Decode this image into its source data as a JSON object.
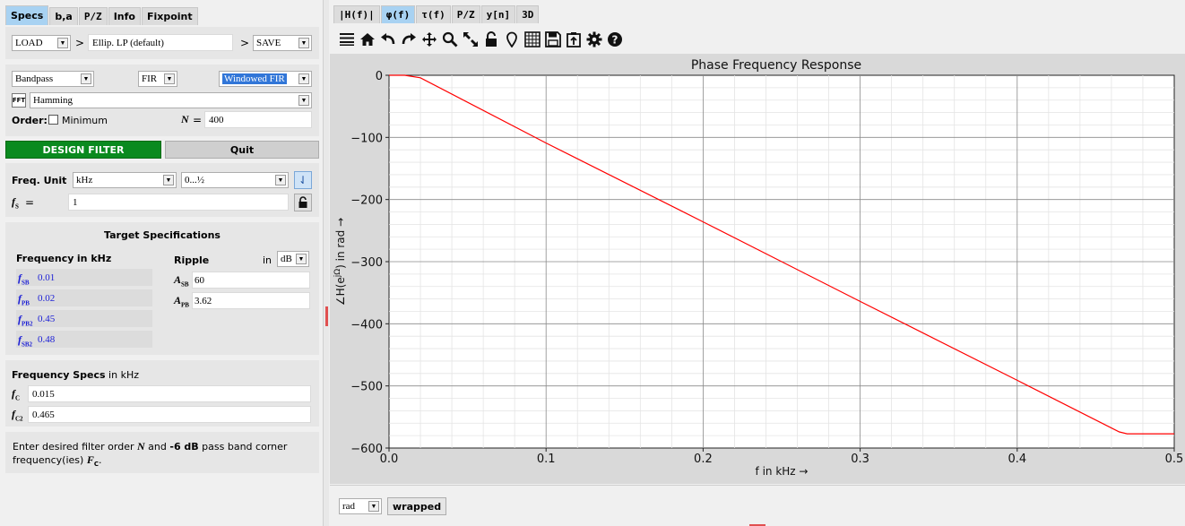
{
  "left_tabs": [
    "Specs",
    "b,a",
    "P/Z",
    "Info",
    "Fixpoint"
  ],
  "load_save": {
    "load": "LOAD",
    "arrow1": ">",
    "preset": "Ellip. LP (default)",
    "arrow2": ">",
    "save": "SAVE"
  },
  "filter": {
    "response_type": "Bandpass",
    "filter_class": "FIR",
    "design_method": "Windowed FIR",
    "fft_label": "FFT",
    "window": "Hamming",
    "order_label": "Order:",
    "minimum_label": "Minimum",
    "n_label": "N",
    "n_eq": "=",
    "n_value": "400"
  },
  "buttons": {
    "design": "DESIGN FILTER",
    "quit": "Quit"
  },
  "freq": {
    "unit_label": "Freq. Unit",
    "unit": "kHz",
    "range": "0...½",
    "fs_label": "f",
    "fs_sub": "S",
    "fs_eq": "=",
    "fs_value": "1"
  },
  "target": {
    "title": "Target Specifications",
    "freq_header": "Frequency",
    "freq_unit_in": "in kHz",
    "ripple_header": "Ripple",
    "ripple_in": "in",
    "ripple_unit": "dB",
    "freq_rows": [
      {
        "sym": "f",
        "sub": "SB",
        "value": "0.01"
      },
      {
        "sym": "f",
        "sub": "PB",
        "value": "0.02"
      },
      {
        "sym": "f",
        "sub": "PB2",
        "value": "0.45"
      },
      {
        "sym": "f",
        "sub": "SB2",
        "value": "0.48"
      }
    ],
    "ripple_rows": [
      {
        "sym": "A",
        "sub": "SB",
        "value": "60"
      },
      {
        "sym": "A",
        "sub": "PB",
        "value": "3.62"
      }
    ]
  },
  "fspecs": {
    "title": "Frequency Specs",
    "unit_in": "in kHz",
    "rows": [
      {
        "sym": "f",
        "sub": "C",
        "value": "0.015"
      },
      {
        "sym": "f",
        "sub": "C2",
        "value": "0.465"
      }
    ]
  },
  "info": {
    "part1": "Enter desired filter order ",
    "n": "N",
    "part2": " and ",
    "db": "-6 dB",
    "part3": " pass band corner frequency(ies) ",
    "fc": "F",
    "fc_sub": "C",
    "part4": "."
  },
  "right_tabs": [
    "|H(f)|",
    "φ(f)",
    "τ(f)",
    "P/Z",
    "y[n]",
    "3D"
  ],
  "toolbar_icons": [
    "menu-lines-icon",
    "home-icon",
    "undo-icon",
    "redo-icon",
    "pan-icon",
    "zoom-icon",
    "full-view-icon",
    "lock-icon",
    "marker-icon",
    "grid-icon",
    "save-icon",
    "clipboard-icon",
    "settings-gear-icon",
    "help-icon"
  ],
  "bottom": {
    "unit": "rad",
    "wrapped": "wrapped"
  },
  "colors": {
    "line": "#ff0000",
    "design_button": "#0a8a1f",
    "active_tab": "#a8d2f2",
    "selected_combo": "#3176d8"
  },
  "chart_data": {
    "type": "line",
    "title": "Phase Frequency Response",
    "xlabel": "f in kHz →",
    "ylabel": "∠H(e^jΩ) in rad →",
    "xlim": [
      0.0,
      0.5
    ],
    "ylim": [
      -600,
      0
    ],
    "xticks": [
      "0.0",
      "0.1",
      "0.2",
      "0.3",
      "0.4",
      "0.5"
    ],
    "yticks": [
      "0",
      "−100",
      "−200",
      "−300",
      "−400",
      "−500",
      "−600"
    ],
    "grid": true,
    "series": [
      {
        "x": [
          0.0,
          0.01,
          0.02,
          0.1,
          0.2,
          0.3,
          0.4,
          0.465,
          0.47,
          0.48,
          0.5
        ],
        "y": [
          0,
          0,
          -4,
          -109,
          -236,
          -364,
          -491,
          -574,
          -577,
          -577,
          -577
        ]
      }
    ]
  }
}
